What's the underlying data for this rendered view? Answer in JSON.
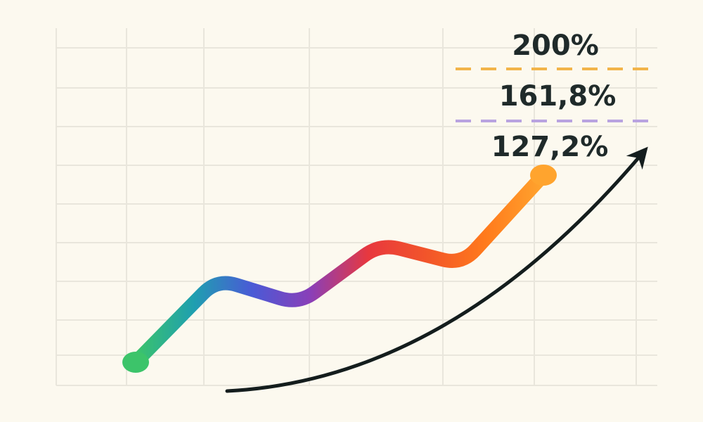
{
  "chart_data": {
    "type": "line",
    "title": "",
    "xlabel": "",
    "ylabel": "",
    "grid": true,
    "legend": "none",
    "series": [
      {
        "points": [
          {
            "x": 1,
            "y": 10
          },
          {
            "x": 2,
            "y": 50
          },
          {
            "x": 3,
            "y": 38
          },
          {
            "x": 4,
            "y": 67
          },
          {
            "x": 5,
            "y": 57
          },
          {
            "x": 6,
            "y": 100
          }
        ],
        "gradient_colors": [
          "#3cc46a",
          "#1f9fb0",
          "#4a5ad6",
          "#8a3fb8",
          "#e8383e",
          "#f2552a",
          "#ff7a1c",
          "#ffa42e"
        ]
      }
    ],
    "xlim": [
      0,
      8
    ],
    "ylim": [
      0,
      100
    ],
    "levels": [
      {
        "label": "200%",
        "line_color": "#f2b44a"
      },
      {
        "label": "161,8%",
        "line_color": "#b9a3e0"
      },
      {
        "label": "127,2%",
        "line_color": ""
      }
    ],
    "trend_arrow": {
      "color": "#141d1d"
    }
  }
}
